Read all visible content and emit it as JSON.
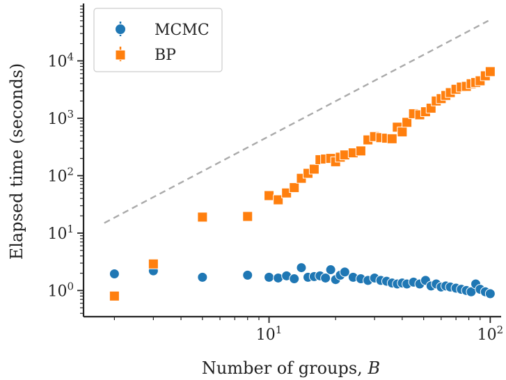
{
  "chart_data": {
    "type": "scatter",
    "title": "",
    "xlabel": "Number of groups, ",
    "xlabel_var": "B",
    "ylabel": "Elapsed time (seconds)",
    "xscale": "log",
    "yscale": "log",
    "xlim": [
      1.45,
      112
    ],
    "ylim": [
      0.35,
      100000
    ],
    "grid": false,
    "legend_placement": "top-left",
    "x_ticks": [
      {
        "value": 10,
        "base": "10",
        "exp": "1"
      },
      {
        "value": 100,
        "base": "10",
        "exp": "2"
      }
    ],
    "y_ticks": [
      {
        "value": 1,
        "base": "10",
        "exp": "0"
      },
      {
        "value": 10,
        "base": "10",
        "exp": "1"
      },
      {
        "value": 100,
        "base": "10",
        "exp": "2"
      },
      {
        "value": 1000,
        "base": "10",
        "exp": "3"
      },
      {
        "value": 10000,
        "base": "10",
        "exp": "4"
      }
    ],
    "reference_line": {
      "style": "dashed",
      "color": "#aaaaaa",
      "points": [
        [
          1.8,
          15
        ],
        [
          98,
          50000
        ]
      ]
    },
    "series": [
      {
        "name": "MCMC",
        "marker": "circle",
        "color": "#1f77b4",
        "x": [
          2,
          3,
          5,
          8,
          10,
          11,
          12,
          13,
          14,
          15,
          16,
          17,
          18,
          19,
          20,
          21,
          22,
          24,
          26,
          28,
          30,
          32,
          34,
          36,
          38,
          40,
          42,
          45,
          48,
          51,
          54,
          57,
          60,
          63,
          66,
          70,
          74,
          78,
          82,
          86,
          90,
          95,
          100
        ],
        "y": [
          1.95,
          2.2,
          1.7,
          1.85,
          1.7,
          1.65,
          1.8,
          1.6,
          2.5,
          1.7,
          1.75,
          1.8,
          1.65,
          2.3,
          1.55,
          1.85,
          2.1,
          1.7,
          1.6,
          1.5,
          1.65,
          1.5,
          1.45,
          1.35,
          1.3,
          1.35,
          1.3,
          1.4,
          1.3,
          1.5,
          1.2,
          1.3,
          1.15,
          1.2,
          1.15,
          1.1,
          1.05,
          1.0,
          0.95,
          1.3,
          1.05,
          0.95,
          0.88
        ]
      },
      {
        "name": "BP",
        "marker": "square",
        "color": "#ff7f0e",
        "x": [
          2,
          3,
          5,
          8,
          10,
          11,
          12,
          13,
          14,
          15,
          16,
          17,
          18,
          19,
          20,
          21,
          22,
          24,
          26,
          28,
          30,
          32,
          34,
          36,
          38,
          40,
          42,
          45,
          48,
          51,
          54,
          57,
          60,
          63,
          66,
          70,
          74,
          78,
          82,
          86,
          90,
          95,
          100
        ],
        "y": [
          0.8,
          2.9,
          19,
          19.5,
          45,
          38,
          50,
          62,
          90,
          110,
          130,
          190,
          195,
          200,
          175,
          210,
          230,
          250,
          270,
          420,
          480,
          460,
          450,
          440,
          700,
          580,
          850,
          1200,
          1150,
          1300,
          1500,
          2000,
          2200,
          2500,
          2800,
          3200,
          3500,
          3600,
          4000,
          4200,
          4500,
          5500,
          6500
        ]
      }
    ]
  }
}
